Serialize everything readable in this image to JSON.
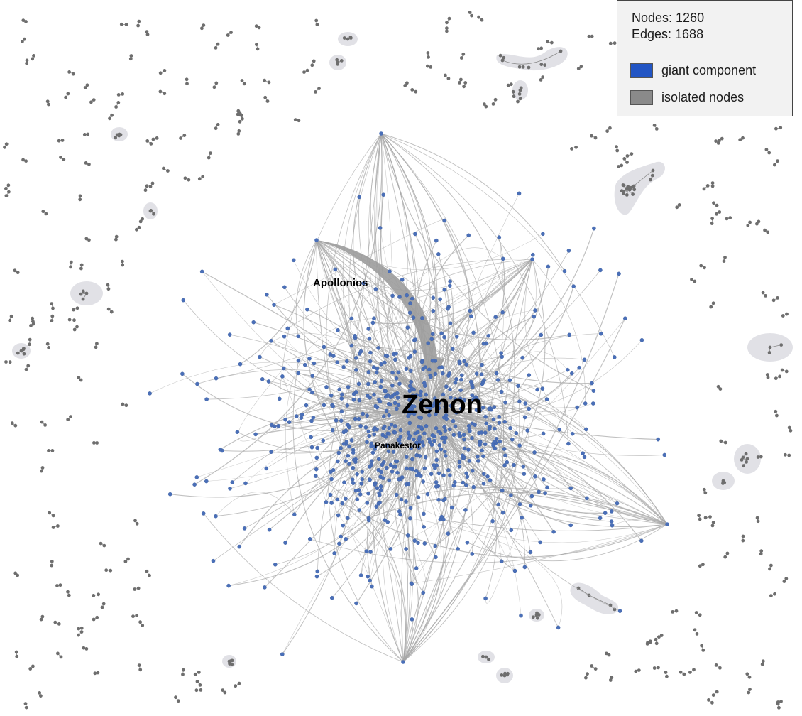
{
  "legend": {
    "nodes_text": "Nodes: 1260",
    "edges_text": "Edges: 1688",
    "items": [
      {
        "label": "giant component",
        "color": "#2255c4"
      },
      {
        "label": "isolated nodes",
        "color": "#8a8a8a"
      }
    ]
  },
  "labels": {
    "hub": "Zenon",
    "secondary": "Apollonios",
    "tertiary": "Panakestor"
  },
  "colors": {
    "giant_node": "#4a6fb8",
    "isolated_node": "#6e6e6e",
    "edge": "#a6a6a6",
    "cluster_hull": "#dcdce2"
  }
}
